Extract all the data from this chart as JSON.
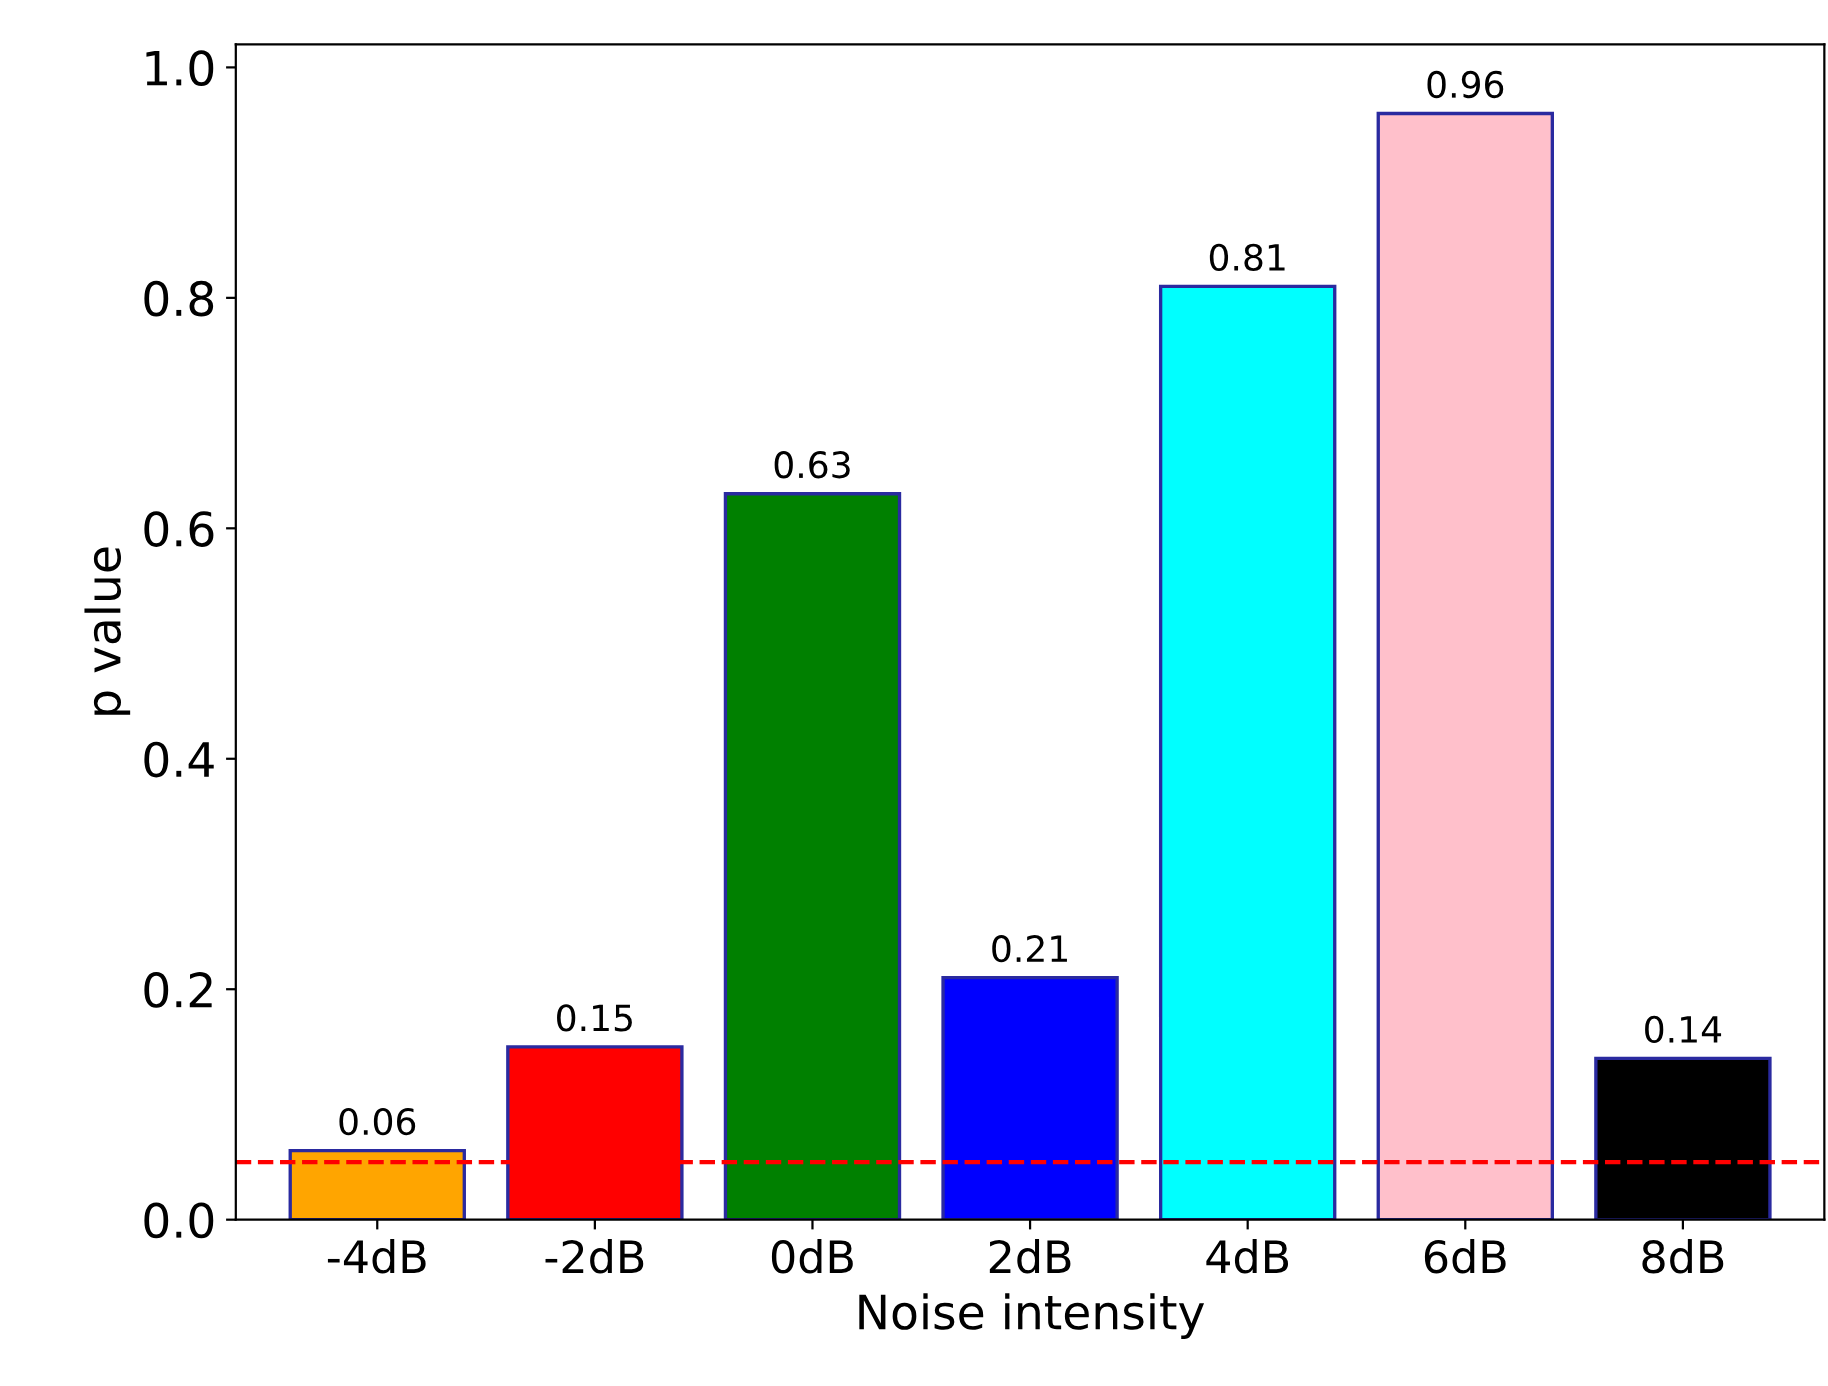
{
  "chart_data": {
    "type": "bar",
    "xlabel": "Noise intensity",
    "ylabel": "p value",
    "categories": [
      "-4dB",
      "-2dB",
      "0dB",
      "2dB",
      "4dB",
      "6dB",
      "8dB"
    ],
    "values": [
      0.06,
      0.15,
      0.63,
      0.21,
      0.81,
      0.96,
      0.14
    ],
    "colors": [
      "#ffa500",
      "#ff0000",
      "#008000",
      "#0000ff",
      "#00ffff",
      "#ffc0cb",
      "#000000"
    ],
    "data_labels": true,
    "ylim": [
      0,
      1.02
    ],
    "yticks": [
      {
        "value": 0,
        "label": "0.0"
      },
      {
        "value": 0.2,
        "label": "0.2"
      },
      {
        "value": 0.4,
        "label": "0.4"
      },
      {
        "value": 0.6,
        "label": "0.6"
      },
      {
        "value": 0.8,
        "label": "0.8"
      },
      {
        "value": 1.0,
        "label": "1.0"
      }
    ],
    "ref_lines": [
      {
        "axis": "y",
        "value": 0.05,
        "color": "#ff0000",
        "line_style": "dashed"
      }
    ],
    "grid": false,
    "legend": false
  }
}
